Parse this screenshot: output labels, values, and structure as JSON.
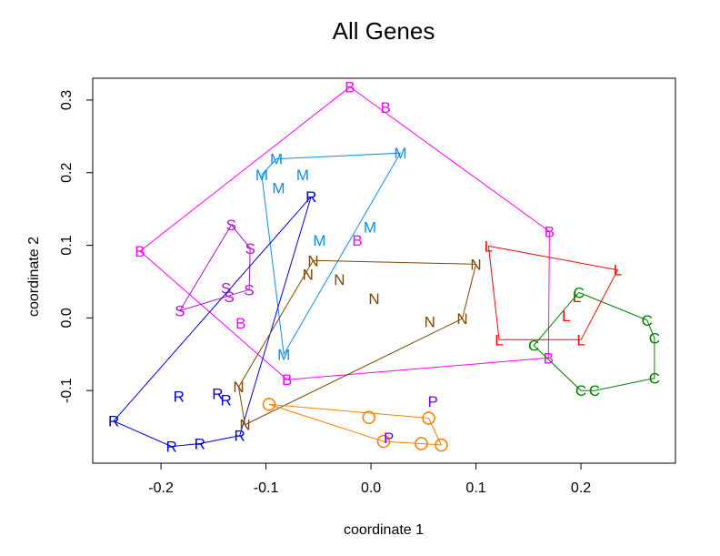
{
  "chart_data": {
    "type": "scatter",
    "title": "All Genes",
    "xlabel": "coordinate 1",
    "ylabel": "coordinate 2",
    "xlim": [
      -0.265,
      0.29
    ],
    "ylim": [
      -0.2,
      0.33
    ],
    "xticks": [
      -0.2,
      -0.1,
      0.0,
      0.1,
      0.2
    ],
    "xtick_labels": [
      "-0.2",
      "-0.1",
      "0.0",
      "0.1",
      "0.2"
    ],
    "yticks": [
      -0.1,
      0.0,
      0.1,
      0.2,
      0.3
    ],
    "ytick_labels": [
      "-0.1",
      "0.0",
      "0.1",
      "0.2",
      "0.3"
    ],
    "series": [
      {
        "name": "B",
        "label": "B",
        "color": "#ff00ff",
        "marker": "letter",
        "points": [
          [
            -0.02,
            0.318
          ],
          [
            0.014,
            0.29
          ],
          [
            -0.013,
            0.107
          ],
          [
            -0.124,
            -0.007
          ],
          [
            0.17,
            0.119
          ],
          [
            -0.08,
            -0.085
          ],
          [
            0.169,
            -0.055
          ],
          [
            -0.22,
            0.092
          ]
        ],
        "hull": [
          [
            -0.02,
            0.318
          ],
          [
            0.17,
            0.119
          ],
          [
            0.169,
            -0.055
          ],
          [
            -0.08,
            -0.085
          ],
          [
            -0.22,
            0.092
          ],
          [
            -0.02,
            0.318
          ]
        ]
      },
      {
        "name": "M",
        "label": "M",
        "color": "#0b8ee8",
        "marker": "letter",
        "points": [
          [
            -0.09,
            0.219
          ],
          [
            0.028,
            0.227
          ],
          [
            -0.065,
            0.197
          ],
          [
            -0.104,
            0.197
          ],
          [
            -0.088,
            0.179
          ],
          [
            -0.049,
            0.107
          ],
          [
            -0.001,
            0.125
          ],
          [
            -0.083,
            -0.05
          ]
        ],
        "hull": [
          [
            -0.104,
            0.197
          ],
          [
            -0.09,
            0.219
          ],
          [
            0.028,
            0.227
          ],
          [
            -0.083,
            -0.05
          ],
          [
            -0.104,
            0.197
          ]
        ]
      },
      {
        "name": "S",
        "label": "S",
        "color": "#b20fd6",
        "marker": "letter",
        "points": [
          [
            -0.133,
            0.128
          ],
          [
            -0.115,
            0.096
          ],
          [
            -0.138,
            0.041
          ],
          [
            -0.116,
            0.039
          ],
          [
            -0.135,
            0.029
          ],
          [
            -0.182,
            0.01
          ]
        ],
        "hull": [
          [
            -0.133,
            0.128
          ],
          [
            -0.115,
            0.096
          ],
          [
            -0.116,
            0.039
          ],
          [
            -0.182,
            0.01
          ],
          [
            -0.133,
            0.128
          ]
        ]
      },
      {
        "name": "R",
        "label": "R",
        "color": "#0000d6",
        "marker": "letter",
        "points": [
          [
            -0.057,
            0.167
          ],
          [
            -0.245,
            -0.142
          ],
          [
            -0.183,
            -0.108
          ],
          [
            -0.146,
            -0.104
          ],
          [
            -0.138,
            -0.113
          ],
          [
            -0.19,
            -0.177
          ],
          [
            -0.163,
            -0.173
          ],
          [
            -0.125,
            -0.162
          ]
        ],
        "hull": [
          [
            -0.057,
            0.167
          ],
          [
            -0.125,
            -0.162
          ],
          [
            -0.163,
            -0.173
          ],
          [
            -0.19,
            -0.177
          ],
          [
            -0.245,
            -0.142
          ],
          [
            -0.057,
            0.167
          ]
        ]
      },
      {
        "name": "N",
        "label": "N",
        "color": "#7f4700",
        "marker": "letter",
        "points": [
          [
            -0.055,
            0.079
          ],
          [
            0.1,
            0.074
          ],
          [
            -0.06,
            0.06
          ],
          [
            -0.03,
            0.053
          ],
          [
            0.003,
            0.027
          ],
          [
            0.056,
            -0.005
          ],
          [
            0.087,
            -0.001
          ],
          [
            -0.126,
            -0.095
          ],
          [
            -0.12,
            -0.147
          ]
        ],
        "hull": [
          [
            -0.055,
            0.079
          ],
          [
            0.1,
            0.074
          ],
          [
            0.087,
            -0.001
          ],
          [
            -0.12,
            -0.147
          ],
          [
            -0.126,
            -0.095
          ],
          [
            -0.055,
            0.079
          ]
        ]
      },
      {
        "name": "L",
        "label": "L",
        "color": "#ff0000",
        "marker": "letter",
        "points": [
          [
            0.112,
            0.099
          ],
          [
            0.235,
            0.066
          ],
          [
            0.196,
            0.029
          ],
          [
            0.186,
            0.003
          ],
          [
            0.122,
            -0.03
          ],
          [
            0.2,
            -0.03
          ]
        ],
        "hull": [
          [
            0.112,
            0.099
          ],
          [
            0.235,
            0.066
          ],
          [
            0.2,
            -0.03
          ],
          [
            0.122,
            -0.03
          ],
          [
            0.112,
            0.099
          ]
        ]
      },
      {
        "name": "C",
        "label": "C",
        "color": "#007f00",
        "marker": "letter",
        "points": [
          [
            0.198,
            0.035
          ],
          [
            0.263,
            -0.003
          ],
          [
            0.27,
            -0.028
          ],
          [
            0.155,
            -0.038
          ],
          [
            0.27,
            -0.083
          ],
          [
            0.2,
            -0.1
          ],
          [
            0.213,
            -0.1
          ]
        ],
        "hull": [
          [
            0.198,
            0.035
          ],
          [
            0.263,
            -0.003
          ],
          [
            0.27,
            -0.028
          ],
          [
            0.27,
            -0.083
          ],
          [
            0.213,
            -0.1
          ],
          [
            0.2,
            -0.1
          ],
          [
            0.155,
            -0.038
          ],
          [
            0.198,
            0.035
          ]
        ]
      },
      {
        "name": "O",
        "label": "O",
        "color": "#ff8000",
        "marker": "circle",
        "points": [
          [
            -0.097,
            -0.119
          ],
          [
            -0.002,
            -0.137
          ],
          [
            0.055,
            -0.138
          ],
          [
            0.012,
            -0.17
          ],
          [
            0.048,
            -0.173
          ],
          [
            0.067,
            -0.175
          ]
        ],
        "hull": [
          [
            -0.097,
            -0.119
          ],
          [
            0.055,
            -0.138
          ],
          [
            0.067,
            -0.175
          ],
          [
            0.048,
            -0.173
          ],
          [
            0.012,
            -0.17
          ],
          [
            -0.097,
            -0.119
          ]
        ]
      },
      {
        "name": "P",
        "label": "P",
        "color": "#7000ff",
        "marker": "letter",
        "points": [
          [
            0.059,
            -0.115
          ],
          [
            0.017,
            -0.165
          ]
        ],
        "hull": []
      }
    ]
  }
}
